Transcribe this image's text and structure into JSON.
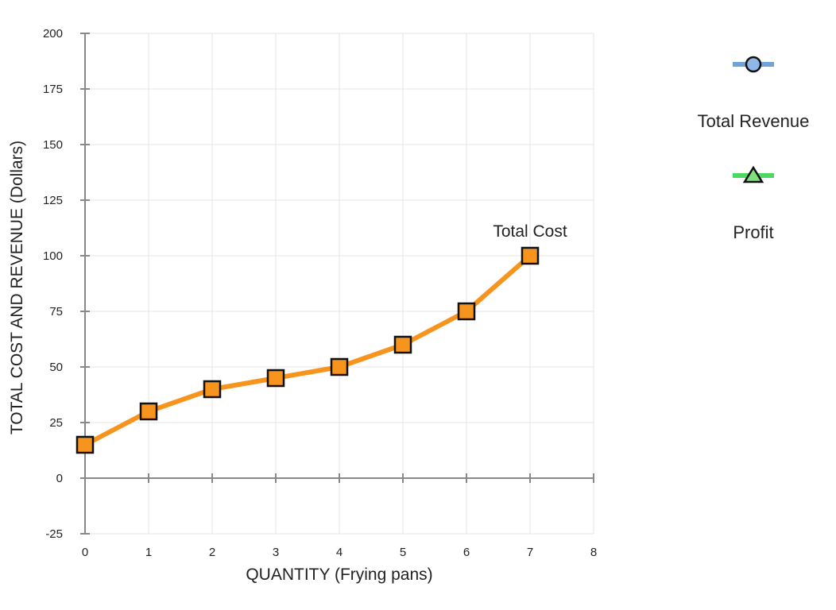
{
  "chart_data": {
    "type": "line",
    "xlabel": "QUANTITY (Frying pans)",
    "ylabel": "TOTAL COST AND REVENUE (Dollars)",
    "xlim": [
      0,
      8
    ],
    "ylim": [
      -25,
      200
    ],
    "x_ticks": [
      "0",
      "1",
      "2",
      "3",
      "4",
      "5",
      "6",
      "7",
      "8"
    ],
    "y_ticks": [
      "200",
      "175",
      "150",
      "125",
      "100",
      "75",
      "50",
      "25",
      "0",
      "-25"
    ],
    "grid": true,
    "series": [
      {
        "name": "Total Cost",
        "label_on_chart": "Total Cost",
        "color": "#f7941d",
        "marker": "square",
        "x": [
          0,
          1,
          2,
          3,
          4,
          5,
          6,
          7
        ],
        "y": [
          15,
          30,
          40,
          45,
          50,
          60,
          75,
          100
        ]
      }
    ],
    "legend": {
      "placement": "right",
      "items": [
        {
          "label": "Total Revenue",
          "line_color": "#6fa3d8",
          "marker": "circle",
          "marker_fill": "#8fb8e8",
          "icon": "circle-marker-icon"
        },
        {
          "label": "Profit",
          "line_color": "#4cd964",
          "marker": "triangle",
          "marker_fill": "#7ee07e",
          "icon": "triangle-marker-icon"
        }
      ]
    }
  }
}
